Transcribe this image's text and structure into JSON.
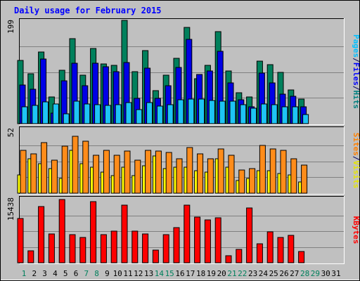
{
  "chart_data": {
    "type": "bar",
    "title": "Daily usage for February 2015",
    "x": [
      "1",
      "2",
      "3",
      "4",
      "5",
      "6",
      "7",
      "8",
      "9",
      "10",
      "11",
      "12",
      "13",
      "14",
      "15",
      "16",
      "17",
      "18",
      "19",
      "20",
      "21",
      "22",
      "23",
      "24",
      "25",
      "26",
      "27",
      "28",
      "29",
      "30",
      "31"
    ],
    "weekend_days": [
      1,
      7,
      8,
      14,
      15,
      21,
      22,
      28,
      29
    ],
    "panels": [
      {
        "name": "top",
        "max_label": "199",
        "ylim": [
          0,
          199
        ],
        "legend": [
          {
            "text": "Pages",
            "color": "#00c0ff"
          },
          {
            "text": "/",
            "color": "#00005e"
          },
          {
            "text": "Files",
            "color": "#0000ff"
          },
          {
            "text": "/",
            "color": "#00005e"
          },
          {
            "text": "Hits",
            "color": "#008080"
          }
        ],
        "series": [
          {
            "name": "Hits",
            "color": "#00805c",
            "values": [
              122,
              96,
              138,
              51,
              103,
              164,
              93,
              145,
              115,
              113,
              199,
              100,
              141,
              63,
              93,
              126,
              185,
              86,
              112,
              177,
              102,
              59,
              51,
              121,
              114,
              99,
              65,
              47
            ]
          },
          {
            "name": "Files",
            "color": "#0000e6",
            "values": [
              75,
              66,
              124,
              20,
              82,
              117,
              73,
              116,
              110,
              100,
              118,
              49,
              107,
              49,
              73,
              108,
              162,
              95,
              102,
              139,
              78,
              46,
              32,
              98,
              78,
              57,
              53,
              33
            ]
          },
          {
            "name": "Pages",
            "color": "#1ec4f5",
            "values": [
              32,
              35,
              42,
              38,
              19,
              43,
              38,
              36,
              35,
              37,
              41,
              27,
              40,
              34,
              37,
              46,
              47,
              47,
              44,
              43,
              43,
              36,
              30,
              38,
              37,
              32,
              32,
              18
            ]
          }
        ]
      },
      {
        "name": "middle",
        "max_label": "52",
        "ylim": [
          0,
          52
        ],
        "legend": [
          {
            "text": "Sites",
            "color": "#ff8000"
          },
          {
            "text": "/",
            "color": "#00005e"
          },
          {
            "text": "Visits",
            "color": "#e6e600"
          }
        ],
        "series": [
          {
            "name": "Visits",
            "color": "#ffff00",
            "values": [
              15,
              28,
              24,
              20,
              12,
              35,
              24,
              21,
              17,
              14,
              21,
              14,
              22,
              30,
              20,
              21,
              21,
              18,
              17,
              28,
              21,
              10,
              12,
              18,
              18,
              16,
              15,
              9
            ]
          },
          {
            "name": "Sites",
            "color": "#ff8c1a",
            "values": [
              35,
              32,
              41,
              27,
              38,
              46,
              42,
              31,
              35,
              31,
              34,
              27,
              35,
              34,
              33,
              28,
              37,
              32,
              28,
              36,
              31,
              19,
              20,
              39,
              36,
              35,
              28,
              23
            ]
          }
        ]
      },
      {
        "name": "bottom",
        "max_label": "15438",
        "ylim": [
          0,
          15438
        ],
        "legend": [
          {
            "text": "KBytes",
            "color": "#ff0000"
          }
        ],
        "series": [
          {
            "name": "KBytes",
            "color": "#ff0000",
            "values": [
              10800,
              2900,
              13700,
              7100,
              15438,
              6900,
              6200,
              15000,
              6900,
              7800,
              14100,
              7700,
              7000,
              3100,
              6800,
              8600,
              14100,
              11100,
              10500,
              11000,
              1800,
              3300,
              13400,
              4700,
              7500,
              6100,
              6700,
              2800
            ]
          }
        ]
      }
    ]
  }
}
